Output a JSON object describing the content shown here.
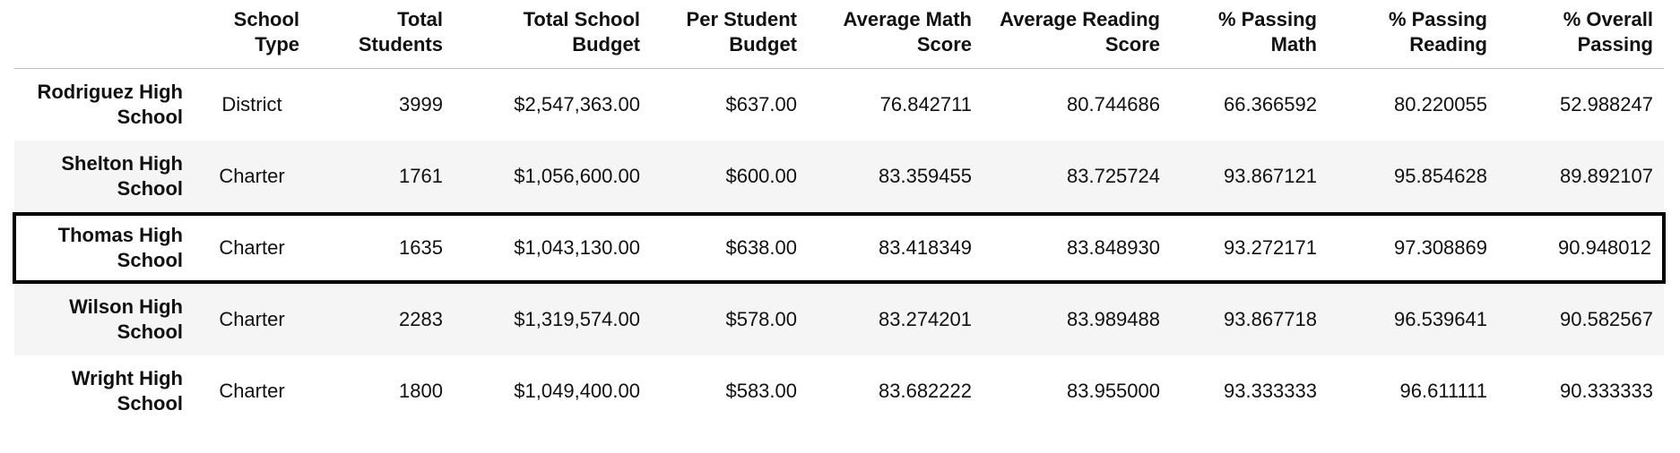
{
  "table": {
    "headers": [
      "",
      "School Type",
      "Total Students",
      "Total School Budget",
      "Per Student Budget",
      "Average Math Score",
      "Average Reading Score",
      "% Passing Math",
      "% Passing Reading",
      "% Overall Passing"
    ],
    "rows": [
      {
        "school": "Rodriguez High School",
        "cells": [
          "District",
          "3999",
          "$2,547,363.00",
          "$637.00",
          "76.842711",
          "80.744686",
          "66.366592",
          "80.220055",
          "52.988247"
        ]
      },
      {
        "school": "Shelton High School",
        "cells": [
          "Charter",
          "1761",
          "$1,056,600.00",
          "$600.00",
          "83.359455",
          "83.725724",
          "93.867121",
          "95.854628",
          "89.892107"
        ]
      },
      {
        "school": "Thomas High School",
        "cells": [
          "Charter",
          "1635",
          "$1,043,130.00",
          "$638.00",
          "83.418349",
          "83.848930",
          "93.272171",
          "97.308869",
          "90.948012"
        ]
      },
      {
        "school": "Wilson High School",
        "cells": [
          "Charter",
          "2283",
          "$1,319,574.00",
          "$578.00",
          "83.274201",
          "83.989488",
          "93.867718",
          "96.539641",
          "90.582567"
        ]
      },
      {
        "school": "Wright High School",
        "cells": [
          "Charter",
          "1800",
          "$1,049,400.00",
          "$583.00",
          "83.682222",
          "83.955000",
          "93.333333",
          "96.611111",
          "90.333333"
        ]
      }
    ],
    "highlighted_row": "Thomas High School"
  },
  "colors": {
    "row_shade": "#f5f5f5",
    "highlight_border": "#000000",
    "header_rule": "#bdbdbd"
  }
}
